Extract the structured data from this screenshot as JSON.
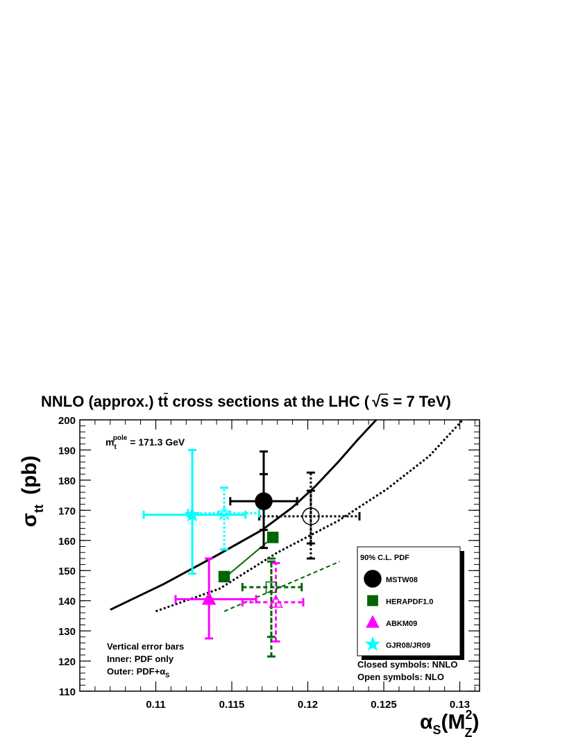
{
  "chart_data": {
    "type": "scatter",
    "title_parts": [
      "NNLO (approx.) t",
      "t",
      " cross sections at the LHC (",
      "s = 7 TeV)"
    ],
    "ylabel_main": "σ",
    "ylabel_sub": "t",
    "ylabel_sub2": "t",
    "ylabel_unit": "(pb)",
    "xlabel_main": "α",
    "xlabel_sub": "S",
    "xlabel_open": "(M",
    "xlabel_sup": "2",
    "xlabel_sub2": "Z",
    "xlabel_close": ")",
    "xlim": [
      0.105,
      0.1313
    ],
    "ylim": [
      110,
      200
    ],
    "xticks": [
      0.11,
      0.115,
      0.12,
      0.125,
      0.13
    ],
    "xtick_labels": [
      "0.11",
      "0.115",
      "0.12",
      "0.125",
      "0.13"
    ],
    "yticks": [
      110,
      120,
      130,
      140,
      150,
      160,
      170,
      180,
      190,
      200
    ],
    "ytick_labels": [
      "110",
      "120",
      "130",
      "140",
      "150",
      "160",
      "170",
      "180",
      "190",
      "200"
    ],
    "mass_label": {
      "base": "m",
      "sub": "t",
      "sup": "pole",
      "value": " = 171.3 GeV"
    },
    "note_lines": [
      "Vertical error bars",
      "Inner: PDF only",
      "Outer: PDF+α"
    ],
    "note_sub": "S",
    "symbol_lines": [
      "Closed symbols: NNLO",
      "Open symbols: NLO"
    ],
    "legend": {
      "title": "90% C.L. PDF",
      "position": "right",
      "entries": [
        {
          "label": "MSTW08",
          "symbol": "circle",
          "color": "#000000"
        },
        {
          "label": "HERAPDF1.0",
          "symbol": "square",
          "color": "#006400"
        },
        {
          "label": "ABKM09",
          "symbol": "triangle",
          "color": "#ff00ff"
        },
        {
          "label": "GJR08/JR09",
          "symbol": "star",
          "color": "#00ffff"
        }
      ]
    },
    "curves": [
      {
        "set": "MSTW08",
        "order": "NNLO",
        "style": "solid",
        "color": "#000000",
        "points": [
          [
            0.107,
            137
          ],
          [
            0.1105,
            145.5
          ],
          [
            0.114,
            155
          ],
          [
            0.117,
            163.5
          ],
          [
            0.119,
            171
          ],
          [
            0.1205,
            178
          ],
          [
            0.122,
            186
          ],
          [
            0.1233,
            193.5
          ],
          [
            0.1245,
            200
          ]
        ]
      },
      {
        "set": "MSTW08",
        "order": "NLO",
        "style": "dotted",
        "color": "#000000",
        "points": [
          [
            0.11,
            136.5
          ],
          [
            0.1142,
            144
          ],
          [
            0.118,
            156
          ],
          [
            0.122,
            166.5
          ],
          [
            0.1252,
            177
          ],
          [
            0.128,
            188
          ],
          [
            0.1302,
            200
          ]
        ]
      },
      {
        "set": "HERAPDF1.0",
        "order": "NNLO",
        "style": "solid",
        "color": "#006400",
        "points": [
          [
            0.1145,
            147.5
          ],
          [
            0.1177,
            161
          ]
        ]
      },
      {
        "set": "HERAPDF1.0",
        "order": "NLO",
        "style": "dashed",
        "color": "#006400",
        "points": [
          [
            0.1145,
            136.5
          ],
          [
            0.1221,
            153
          ]
        ]
      }
    ],
    "points": [
      {
        "set": "MSTW08",
        "order": "NNLO",
        "symbol": "circle",
        "fill": "closed",
        "color": "#000000",
        "style": "solid",
        "x": 0.1171,
        "y": 173,
        "xerr": [
          0.1149,
          0.1193
        ],
        "yerr_inner": [
          163.5,
          182
        ],
        "yerr_outer": [
          157.5,
          189.5
        ]
      },
      {
        "set": "MSTW08",
        "order": "NLO",
        "symbol": "circle",
        "fill": "open",
        "color": "#000000",
        "style": "dotted",
        "x": 0.1202,
        "y": 168,
        "xerr": [
          0.1168,
          0.1234
        ],
        "yerr_inner": [
          159,
          176.5
        ],
        "yerr_outer": [
          154,
          182.5
        ]
      },
      {
        "set": "HERAPDF1.0",
        "order": "NNLO",
        "symbol": "square",
        "fill": "closed",
        "color": "#006400",
        "style": "solid",
        "x": 0.1145,
        "y": 148,
        "xerr": null,
        "yerr_inner": null,
        "yerr_outer": null
      },
      {
        "set": "HERAPDF1.0",
        "order": "NNLO",
        "symbol": "square",
        "fill": "closed",
        "color": "#006400",
        "style": "solid",
        "x": 0.1177,
        "y": 161,
        "xerr": null,
        "yerr_inner": null,
        "yerr_outer": null
      },
      {
        "set": "HERAPDF1.0",
        "order": "NLO",
        "symbol": "square",
        "fill": "open",
        "color": "#006400",
        "style": "dashed",
        "x": 0.1176,
        "y": 144.5,
        "xerr": [
          0.1157,
          0.1196
        ],
        "yerr_inner": [
          128,
          153
        ],
        "yerr_outer": [
          121.5,
          154
        ]
      },
      {
        "set": "ABKM09",
        "order": "NNLO",
        "symbol": "triangle",
        "fill": "closed",
        "color": "#ff00ff",
        "style": "solid",
        "x": 0.1135,
        "y": 140.5,
        "xerr": [
          0.1113,
          0.1166
        ],
        "yerr_inner": [
          127.5,
          154
        ],
        "yerr_outer": null
      },
      {
        "set": "ABKM09",
        "order": "NLO",
        "symbol": "triangle",
        "fill": "open",
        "color": "#ff00ff",
        "style": "dashed",
        "x": 0.1179,
        "y": 139.5,
        "xerr": [
          0.1157,
          0.1197
        ],
        "yerr_inner": [
          126.5,
          152.5
        ],
        "yerr_outer": null
      },
      {
        "set": "GJR08/JR09",
        "order": "NNLO",
        "symbol": "star",
        "fill": "closed",
        "color": "#00ffff",
        "style": "solid",
        "x": 0.1124,
        "y": 168.5,
        "xerr": [
          0.1092,
          0.1159
        ],
        "yerr_inner": [
          149,
          190
        ],
        "yerr_outer": null
      },
      {
        "set": "GJR08/JR09",
        "order": "NLO",
        "symbol": "star",
        "fill": "open",
        "color": "#00ffff",
        "style": "dotted",
        "x": 0.1145,
        "y": 169,
        "xerr": [
          0.1121,
          0.1168
        ],
        "yerr_inner": [
          157,
          177.5
        ],
        "yerr_outer": null
      }
    ],
    "grid": false
  }
}
